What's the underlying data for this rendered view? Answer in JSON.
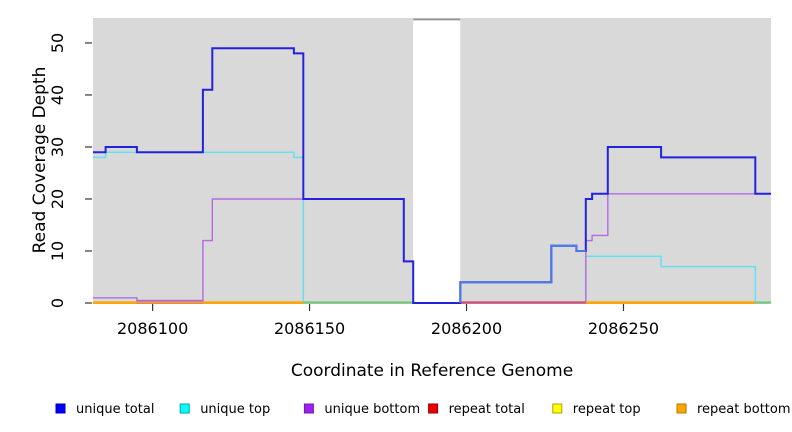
{
  "chart_data": {
    "type": "line",
    "title": "",
    "xlabel": "Coordinate in Reference Genome",
    "ylabel": "Read Coverage Depth",
    "xlim": [
      2086081,
      2086297
    ],
    "ylim": [
      0,
      54.8
    ],
    "x_ticks": [
      2086100,
      2086150,
      2086200,
      2086250
    ],
    "y_ticks": [
      0,
      10,
      20,
      30,
      40,
      50
    ],
    "grid": false,
    "legend_position": "bottom",
    "panel_bg": "#d9d9d9",
    "gap_region": {
      "x0": 2086183,
      "x1": 2086198,
      "fill": "#ffffff",
      "top_line_color": "#949494"
    },
    "series": [
      {
        "name": "unique total",
        "color": "#2323dd",
        "legend_color": "#0000ff",
        "legend_border": "#0000aa",
        "steps": [
          [
            2086081,
            29
          ],
          [
            2086085,
            30
          ],
          [
            2086095,
            29
          ],
          [
            2086116,
            41
          ],
          [
            2086119,
            49
          ],
          [
            2086145,
            48
          ],
          [
            2086148,
            20
          ],
          [
            2086180,
            8
          ],
          [
            2086183,
            0
          ],
          [
            2086198,
            4
          ],
          [
            2086227,
            11
          ],
          [
            2086235,
            10
          ],
          [
            2086238,
            20
          ],
          [
            2086240,
            21
          ],
          [
            2086245,
            30
          ],
          [
            2086262,
            28
          ],
          [
            2086292,
            21
          ],
          [
            2086297,
            21
          ]
        ],
        "light_overlay": {
          "from": 2086198,
          "to": 2086238,
          "color": "#4b79e8"
        }
      },
      {
        "name": "unique top",
        "color": "#63e2ee",
        "legend_color": "#00ffff",
        "legend_border": "#00a0b0",
        "steps": [
          [
            2086081,
            28
          ],
          [
            2086085,
            29
          ],
          [
            2086145,
            28
          ],
          [
            2086148,
            0
          ],
          [
            2086238,
            9
          ],
          [
            2086262,
            7
          ],
          [
            2086292,
            0
          ],
          [
            2086297,
            0
          ]
        ]
      },
      {
        "name": "unique bottom",
        "color": "#b36be0",
        "legend_color": "#a020f0",
        "legend_border": "#7018b0",
        "steps": [
          [
            2086081,
            1
          ],
          [
            2086095,
            0
          ],
          [
            2086116,
            12
          ],
          [
            2086119,
            20
          ],
          [
            2086180,
            8
          ],
          [
            2086183,
            0
          ],
          [
            2086238,
            12
          ],
          [
            2086240,
            13
          ],
          [
            2086245,
            21
          ],
          [
            2086297,
            21
          ]
        ]
      },
      {
        "name": "repeat total",
        "color": "#d84a66",
        "legend_color": "#ee0000",
        "legend_border": "#990000",
        "steps": [
          [
            2086081,
            0
          ],
          [
            2086297,
            0
          ]
        ]
      },
      {
        "name": "repeat top",
        "color": "#f2f200",
        "legend_color": "#ffff00",
        "legend_border": "#b0a000",
        "steps": [
          [
            2086081,
            0
          ],
          [
            2086297,
            0
          ]
        ]
      },
      {
        "name": "repeat bottom",
        "color": "#ffa500",
        "legend_color": "#ffa500",
        "legend_border": "#b87400",
        "steps": [
          [
            2086081,
            0
          ],
          [
            2086297,
            0
          ]
        ]
      }
    ],
    "baseline_segments": [
      {
        "x0": 2086081,
        "x1": 2086148,
        "color": "#ffa500",
        "dy": 0
      },
      {
        "x0": 2086148,
        "x1": 2086183,
        "color": "#79c779",
        "dy": 0
      },
      {
        "x0": 2086198,
        "x1": 2086238,
        "color": "#d84a66",
        "dy": 0
      },
      {
        "x0": 2086238,
        "x1": 2086292,
        "color": "#ffa500",
        "dy": 0
      },
      {
        "x0": 2086292,
        "x1": 2086297,
        "color": "#79c779",
        "dy": 0
      },
      {
        "x0": 2086095,
        "x1": 2086116,
        "color": "#b36be0",
        "dy": -1.6
      }
    ]
  }
}
